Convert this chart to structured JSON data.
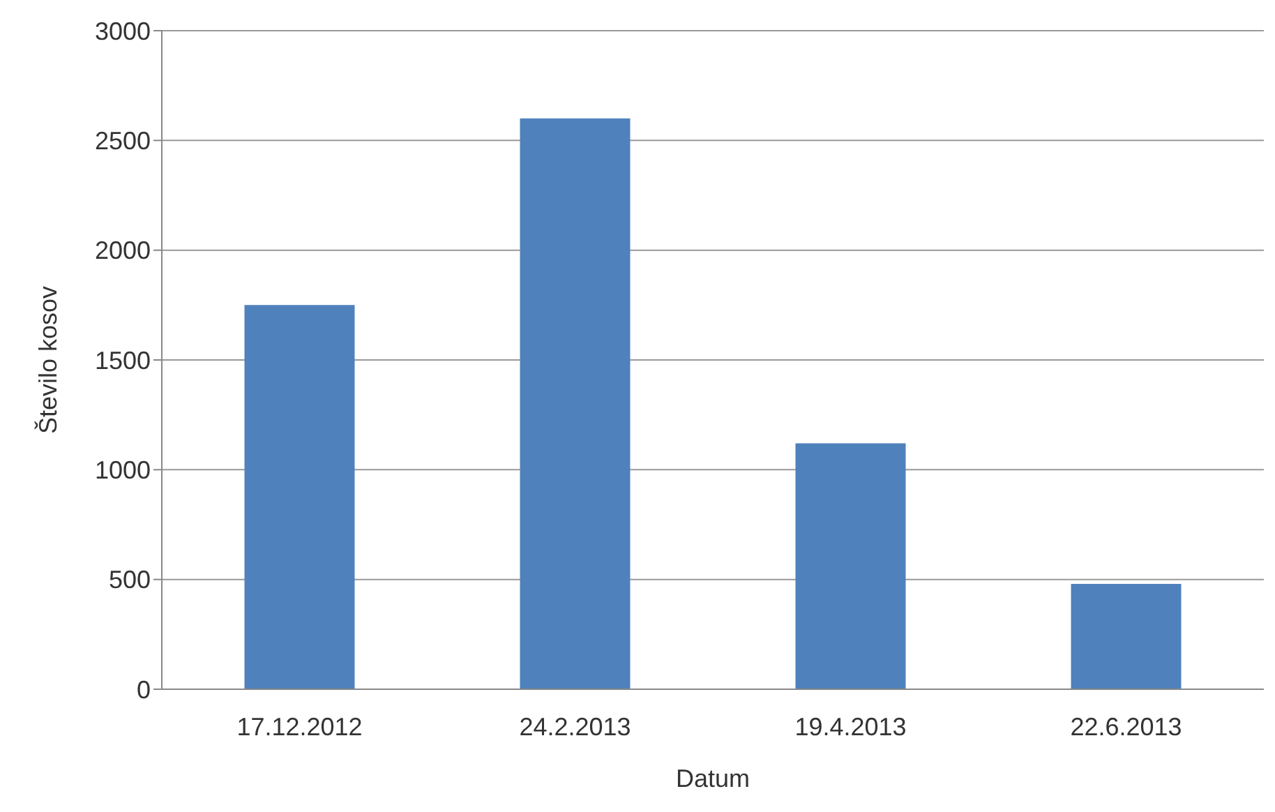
{
  "chart_data": {
    "type": "bar",
    "xlabel": "Datum",
    "ylabel": "Število kosov",
    "categories": [
      "17.12.2012",
      "24.2.2013",
      "19.4.2013",
      "22.6.2013"
    ],
    "values": [
      1750,
      2600,
      1120,
      480
    ],
    "color": "#4f81bd",
    "ylim": [
      0,
      3000
    ],
    "yticks": [
      0,
      500,
      1000,
      1500,
      2000,
      2500,
      3000
    ],
    "grid": "y"
  }
}
